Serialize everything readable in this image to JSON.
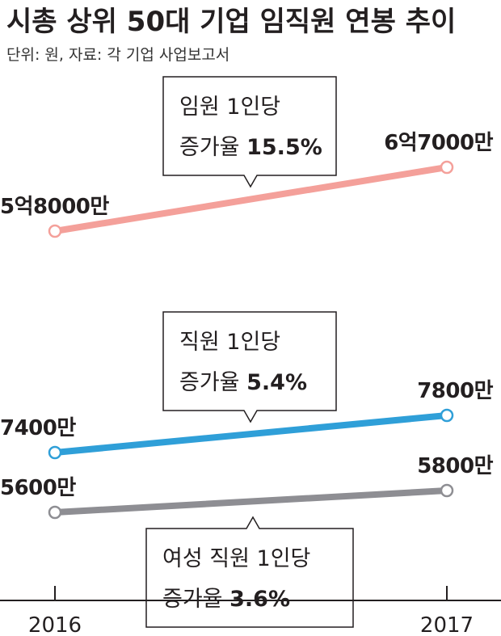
{
  "title": "시총 상위 50대 기업 임직원 연봉 추이",
  "subtitle": "단위: 원, 자료: 각 기업 사업보고서",
  "chart_data": {
    "type": "line",
    "categories": [
      "2016",
      "2017"
    ],
    "ylim": [
      0,
      70000
    ],
    "grid": false,
    "series": [
      {
        "key": "exec",
        "color": "#f4a09a",
        "values": [
          58000,
          67000
        ],
        "labels": [
          "5억8000만",
          "6억7000만"
        ],
        "callout": {
          "line1": "임원 1인당",
          "line2_prefix": "증가율 ",
          "rate": "15.5%"
        }
      },
      {
        "key": "staff",
        "color": "#2f9fd8",
        "values": [
          7400,
          7800
        ],
        "labels": [
          "7400만",
          "7800만"
        ],
        "callout": {
          "line1": "직원 1인당",
          "line2_prefix": "증가율 ",
          "rate": "5.4%"
        }
      },
      {
        "key": "female",
        "color": "#8e8e93",
        "values": [
          5600,
          5800
        ],
        "labels": [
          "5600만",
          "5800만"
        ],
        "callout": {
          "line1": "여성 직원 1인당",
          "line2_prefix": "증가율 ",
          "rate": "3.6%"
        }
      }
    ]
  }
}
